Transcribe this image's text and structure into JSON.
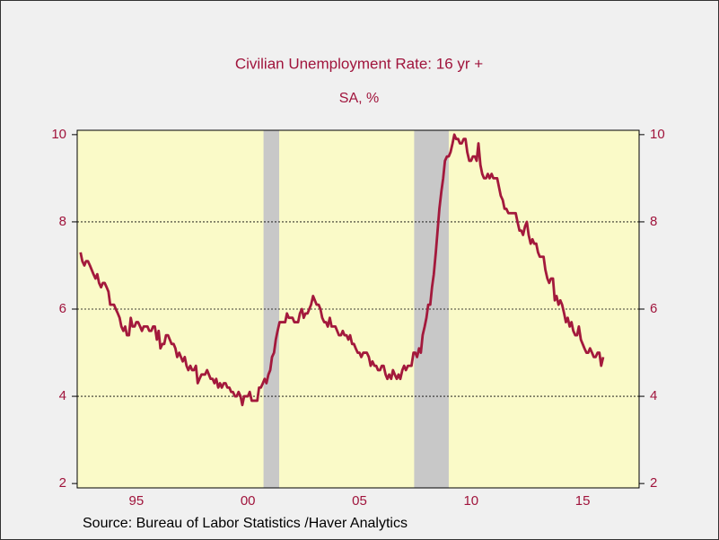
{
  "chart_data": {
    "type": "line",
    "title": "Civilian Unemployment Rate: 16 yr +",
    "subtitle": "SA, %",
    "source": "Source:  Bureau of Labor Statistics /Haver Analytics",
    "color": "#a3193c",
    "ylim": [
      1.9,
      10.1
    ],
    "yticks": [
      2,
      4,
      6,
      8,
      10
    ],
    "xlim": [
      1992.85,
      2018.03
    ],
    "xticks": [
      {
        "value": 1995.5,
        "label": "95"
      },
      {
        "value": 2000.5,
        "label": "00"
      },
      {
        "value": 2005.5,
        "label": "05"
      },
      {
        "value": 2010.5,
        "label": "10"
      },
      {
        "value": 2015.5,
        "label": "15"
      }
    ],
    "grid": true,
    "recessions": [
      [
        2001.2,
        2001.9
      ],
      [
        2007.95,
        2009.5
      ]
    ],
    "x": [
      1993,
      1993.08,
      1993.17,
      1993.25,
      1993.33,
      1993.42,
      1993.5,
      1993.58,
      1993.67,
      1993.75,
      1993.83,
      1993.92,
      1994,
      1994.08,
      1994.17,
      1994.25,
      1994.33,
      1994.42,
      1994.5,
      1994.58,
      1994.67,
      1994.75,
      1994.83,
      1994.92,
      1995,
      1995.08,
      1995.17,
      1995.25,
      1995.33,
      1995.42,
      1995.5,
      1995.58,
      1995.67,
      1995.75,
      1995.83,
      1995.92,
      1996,
      1996.08,
      1996.17,
      1996.25,
      1996.33,
      1996.42,
      1996.5,
      1996.58,
      1996.67,
      1996.75,
      1996.83,
      1996.92,
      1997,
      1997.08,
      1997.17,
      1997.25,
      1997.33,
      1997.42,
      1997.5,
      1997.58,
      1997.67,
      1997.75,
      1997.83,
      1997.92,
      1998,
      1998.08,
      1998.17,
      1998.25,
      1998.33,
      1998.42,
      1998.5,
      1998.58,
      1998.67,
      1998.75,
      1998.83,
      1998.92,
      1999,
      1999.08,
      1999.17,
      1999.25,
      1999.33,
      1999.42,
      1999.5,
      1999.58,
      1999.67,
      1999.75,
      1999.83,
      1999.92,
      2000,
      2000.08,
      2000.17,
      2000.25,
      2000.33,
      2000.42,
      2000.5,
      2000.58,
      2000.67,
      2000.75,
      2000.83,
      2000.92,
      2001,
      2001.08,
      2001.17,
      2001.25,
      2001.33,
      2001.42,
      2001.5,
      2001.58,
      2001.67,
      2001.75,
      2001.83,
      2001.92,
      2002,
      2002.08,
      2002.17,
      2002.25,
      2002.33,
      2002.42,
      2002.5,
      2002.58,
      2002.67,
      2002.75,
      2002.83,
      2002.92,
      2003,
      2003.08,
      2003.17,
      2003.25,
      2003.33,
      2003.42,
      2003.5,
      2003.58,
      2003.67,
      2003.75,
      2003.83,
      2003.92,
      2004,
      2004.08,
      2004.17,
      2004.25,
      2004.33,
      2004.42,
      2004.5,
      2004.58,
      2004.67,
      2004.75,
      2004.83,
      2004.92,
      2005,
      2005.08,
      2005.17,
      2005.25,
      2005.33,
      2005.42,
      2005.5,
      2005.58,
      2005.67,
      2005.75,
      2005.83,
      2005.92,
      2006,
      2006.08,
      2006.17,
      2006.25,
      2006.33,
      2006.42,
      2006.5,
      2006.58,
      2006.67,
      2006.75,
      2006.83,
      2006.92,
      2007,
      2007.08,
      2007.17,
      2007.25,
      2007.33,
      2007.42,
      2007.5,
      2007.58,
      2007.67,
      2007.75,
      2007.83,
      2007.92,
      2008,
      2008.08,
      2008.17,
      2008.25,
      2008.33,
      2008.42,
      2008.5,
      2008.58,
      2008.67,
      2008.75,
      2008.83,
      2008.92,
      2009,
      2009.08,
      2009.17,
      2009.25,
      2009.33,
      2009.42,
      2009.5,
      2009.58,
      2009.67,
      2009.75,
      2009.83,
      2009.92,
      2010,
      2010.08,
      2010.17,
      2010.25,
      2010.33,
      2010.42,
      2010.5,
      2010.58,
      2010.67,
      2010.75,
      2010.83,
      2010.92,
      2011,
      2011.08,
      2011.17,
      2011.25,
      2011.33,
      2011.42,
      2011.5,
      2011.58,
      2011.67,
      2011.75,
      2011.83,
      2011.92,
      2012,
      2012.08,
      2012.17,
      2012.25,
      2012.33,
      2012.42,
      2012.5,
      2012.58,
      2012.67,
      2012.75,
      2012.83,
      2012.92,
      2013,
      2013.08,
      2013.17,
      2013.25,
      2013.33,
      2013.42,
      2013.5,
      2013.58,
      2013.67,
      2013.75,
      2013.83,
      2013.92,
      2014,
      2014.08,
      2014.17,
      2014.25,
      2014.33,
      2014.42,
      2014.5,
      2014.58,
      2014.67,
      2014.75,
      2014.83,
      2014.92,
      2015,
      2015.08,
      2015.17,
      2015.25,
      2015.33,
      2015.42,
      2015.5,
      2015.58,
      2015.67,
      2015.75,
      2015.83,
      2015.92,
      2016,
      2016.08,
      2016.17,
      2016.25,
      2016.33,
      2016.42
    ],
    "values": [
      7.3,
      7.1,
      7.0,
      7.1,
      7.1,
      7.0,
      6.9,
      6.8,
      6.7,
      6.8,
      6.6,
      6.5,
      6.6,
      6.6,
      6.5,
      6.4,
      6.1,
      6.1,
      6.1,
      6.0,
      5.9,
      5.8,
      5.6,
      5.5,
      5.6,
      5.4,
      5.4,
      5.8,
      5.6,
      5.6,
      5.7,
      5.7,
      5.6,
      5.5,
      5.6,
      5.6,
      5.6,
      5.5,
      5.5,
      5.6,
      5.6,
      5.3,
      5.5,
      5.1,
      5.2,
      5.2,
      5.4,
      5.4,
      5.3,
      5.2,
      5.2,
      5.1,
      4.9,
      5.0,
      4.9,
      4.8,
      4.9,
      4.7,
      4.6,
      4.7,
      4.6,
      4.6,
      4.7,
      4.3,
      4.4,
      4.5,
      4.5,
      4.5,
      4.6,
      4.5,
      4.4,
      4.4,
      4.3,
      4.4,
      4.2,
      4.3,
      4.2,
      4.3,
      4.3,
      4.2,
      4.2,
      4.1,
      4.1,
      4.0,
      4.0,
      4.1,
      4.0,
      3.8,
      4.0,
      4.0,
      4.0,
      4.1,
      3.9,
      3.9,
      3.9,
      3.9,
      4.2,
      4.2,
      4.3,
      4.4,
      4.3,
      4.5,
      4.6,
      4.9,
      5.0,
      5.3,
      5.5,
      5.7,
      5.7,
      5.7,
      5.7,
      5.9,
      5.8,
      5.8,
      5.8,
      5.7,
      5.7,
      5.7,
      5.9,
      6.0,
      5.8,
      5.9,
      5.9,
      6.0,
      6.1,
      6.3,
      6.2,
      6.1,
      6.1,
      6.0,
      5.8,
      5.7,
      5.7,
      5.6,
      5.8,
      5.6,
      5.6,
      5.6,
      5.5,
      5.4,
      5.4,
      5.5,
      5.4,
      5.4,
      5.3,
      5.4,
      5.2,
      5.2,
      5.1,
      5.0,
      5.0,
      4.9,
      5.0,
      5.0,
      5.0,
      4.9,
      4.7,
      4.8,
      4.7,
      4.7,
      4.6,
      4.6,
      4.7,
      4.7,
      4.5,
      4.4,
      4.5,
      4.4,
      4.6,
      4.5,
      4.4,
      4.5,
      4.4,
      4.6,
      4.7,
      4.6,
      4.7,
      4.7,
      4.7,
      5.0,
      5.0,
      4.9,
      5.1,
      5.0,
      5.4,
      5.6,
      5.8,
      6.1,
      6.1,
      6.5,
      6.8,
      7.3,
      7.8,
      8.3,
      8.7,
      9.0,
      9.4,
      9.5,
      9.5,
      9.6,
      9.8,
      10.0,
      9.9,
      9.9,
      9.8,
      9.8,
      9.9,
      9.9,
      9.6,
      9.4,
      9.4,
      9.5,
      9.5,
      9.4,
      9.8,
      9.3,
      9.1,
      9.0,
      9.0,
      9.1,
      9.0,
      9.1,
      9.0,
      9.0,
      9.0,
      8.8,
      8.6,
      8.5,
      8.3,
      8.3,
      8.2,
      8.2,
      8.2,
      8.2,
      8.2,
      8.0,
      7.8,
      7.8,
      7.7,
      7.9,
      8.0,
      7.7,
      7.5,
      7.6,
      7.5,
      7.5,
      7.3,
      7.2,
      7.2,
      7.2,
      6.9,
      6.7,
      6.6,
      6.7,
      6.7,
      6.2,
      6.3,
      6.1,
      6.2,
      6.1,
      5.9,
      5.7,
      5.8,
      5.6,
      5.7,
      5.5,
      5.4,
      5.4,
      5.6,
      5.3,
      5.2,
      5.1,
      5.0,
      5.0,
      5.1,
      5.0,
      4.9,
      4.9,
      5.0,
      5.0,
      4.7,
      4.9
    ]
  }
}
